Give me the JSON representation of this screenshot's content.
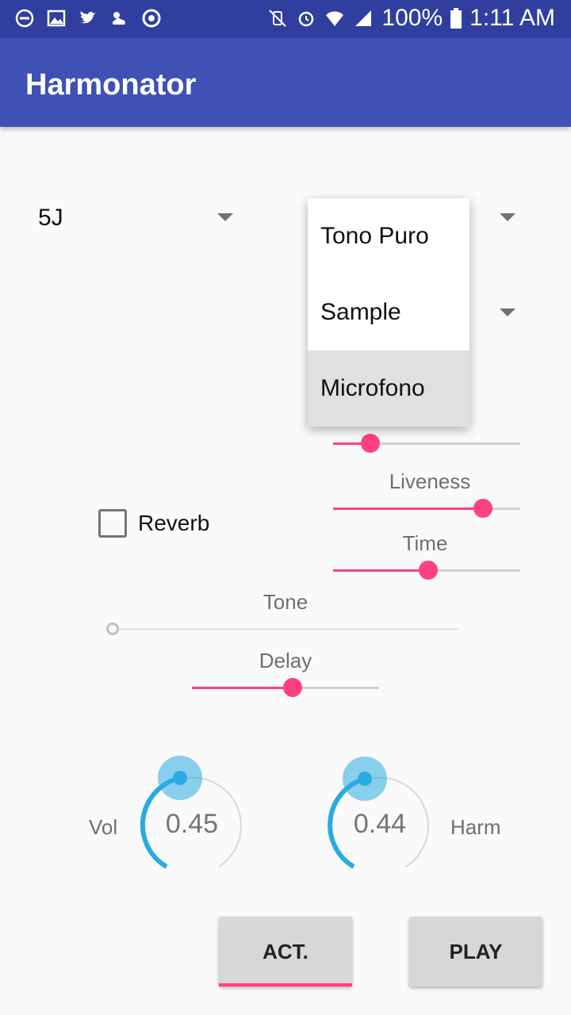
{
  "status_bar": {
    "battery_percent": "100%",
    "time": "1:11 AM",
    "icons": [
      "do-not-disturb-icon",
      "image-icon",
      "twitter-icon",
      "weather-icon",
      "chrome-icon",
      "mute-vibrate-icon",
      "alarm-icon",
      "wifi-icon",
      "signal-icon",
      "battery-icon"
    ]
  },
  "app": {
    "title": "Harmonator"
  },
  "spinners": {
    "left": {
      "value": "5J"
    }
  },
  "sliders": {
    "top_unlabeled": {
      "value": 0.2
    },
    "liveness": {
      "label": "Liveness",
      "value": 0.8
    },
    "time": {
      "label": "Time",
      "value": 0.5
    },
    "tone": {
      "label": "Tone",
      "value": 0.0
    },
    "delay": {
      "label": "Delay",
      "value": 0.55
    }
  },
  "checkbox": {
    "label": "Reverb",
    "checked": false
  },
  "knobs": {
    "vol": {
      "label": "Vol",
      "value": "0.45"
    },
    "harm": {
      "label": "Harm",
      "value": "0.44"
    }
  },
  "buttons": {
    "act": "ACT.",
    "play": "PLAY"
  },
  "popup_menu": {
    "items": [
      "Tono Puro",
      "Sample",
      "Microfono"
    ],
    "selected_index": 2
  },
  "colors": {
    "primary": "#3f51b5",
    "primary_dark": "#303f9f",
    "accent": "#ff4081",
    "knob": "#29abe2"
  }
}
